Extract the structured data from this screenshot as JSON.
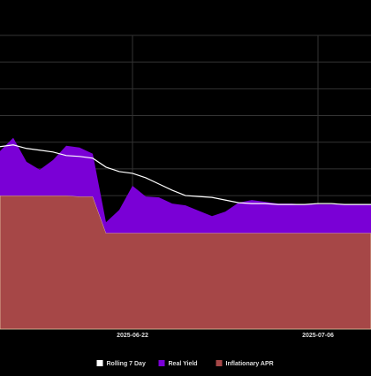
{
  "chart_data": {
    "type": "area",
    "x_axis": {
      "ticks": [
        {
          "date": "2025-06-22",
          "label": "2025-06-22"
        },
        {
          "date": "2025-07-06",
          "label": "2025-07-06"
        }
      ],
      "range": [
        "2025-06-12",
        "2025-07-10"
      ]
    },
    "y_range": [
      0,
      33
    ],
    "grid": true,
    "legend_position": "bottom",
    "colors": {
      "rolling_7_day": "#ffffff",
      "real_yield": "#7a00d6",
      "inflationary_apr": "#a64747",
      "grid": "#333333",
      "background": "#000000"
    },
    "x": [
      "2025-06-12",
      "2025-06-13",
      "2025-06-14",
      "2025-06-15",
      "2025-06-16",
      "2025-06-17",
      "2025-06-18",
      "2025-06-19",
      "2025-06-20",
      "2025-06-21",
      "2025-06-22",
      "2025-06-23",
      "2025-06-24",
      "2025-06-25",
      "2025-06-26",
      "2025-06-27",
      "2025-06-28",
      "2025-06-29",
      "2025-06-30",
      "2025-07-01",
      "2025-07-02",
      "2025-07-03",
      "2025-07-04",
      "2025-07-05",
      "2025-07-06",
      "2025-07-07",
      "2025-07-08",
      "2025-07-09",
      "2025-07-10"
    ],
    "series": [
      {
        "name": "Rolling 7 Day",
        "kind": "line",
        "values": [
          20.5,
          20.7,
          20.3,
          20.1,
          19.9,
          19.5,
          19.4,
          19.2,
          18.2,
          17.7,
          17.5,
          17.0,
          16.3,
          15.6,
          15.0,
          14.9,
          14.8,
          14.5,
          14.2,
          14.1,
          14.1,
          14.0,
          14.0,
          14.0,
          14.1,
          14.1,
          14.0,
          14.0,
          14.0
        ]
      },
      {
        "name": "Real Yield",
        "kind": "area-stacked",
        "values": [
          5.0,
          6.5,
          3.8,
          2.9,
          4.0,
          5.6,
          5.5,
          4.8,
          1.2,
          2.6,
          5.3,
          4.1,
          4.0,
          3.3,
          3.1,
          2.5,
          1.9,
          2.4,
          3.4,
          3.7,
          3.5,
          3.3,
          3.3,
          3.2,
          3.2,
          3.2,
          3.2,
          3.2,
          3.2
        ]
      },
      {
        "name": "Inflationary APR",
        "kind": "area-stacked",
        "values": [
          15.0,
          15.0,
          15.0,
          15.0,
          15.0,
          15.0,
          14.9,
          14.9,
          10.8,
          10.8,
          10.8,
          10.8,
          10.8,
          10.8,
          10.8,
          10.8,
          10.8,
          10.8,
          10.8,
          10.8,
          10.8,
          10.8,
          10.8,
          10.8,
          10.8,
          10.8,
          10.8,
          10.8,
          10.8
        ]
      }
    ]
  }
}
